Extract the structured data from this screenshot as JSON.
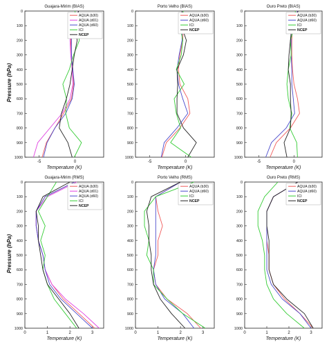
{
  "figure": {
    "ylabel": "Pressure (hPa)",
    "xlabel": "Temperature (K)"
  },
  "colors": {
    "aqua_b30": "#f05a5a",
    "aqua_d01": "#e040e0",
    "aqua_d60": "#4a4acc",
    "ici": "#33cc33",
    "ncep": "#222222"
  },
  "chart_data": [
    {
      "type": "line",
      "title": "Guajara-Mirim (BIAS)",
      "xlabel": "Temperature (K)",
      "ylabel": "Pressure (hPa)",
      "xlim": [
        -7,
        4
      ],
      "ylim": [
        1000,
        0
      ],
      "y_inverted": true,
      "grid": false,
      "xticks": [
        -5,
        0
      ],
      "xtick_labels": [
        "-5",
        "0"
      ],
      "y": [
        0,
        100,
        200,
        300,
        400,
        500,
        600,
        700,
        800,
        900,
        1000
      ],
      "legend_position": "top-right",
      "series": [
        {
          "name": "AQUA (b30)",
          "color": "#f05a5a",
          "x": [
            0.5,
            -0.4,
            -0.6,
            -0.5,
            -0.3,
            -0.2,
            -0.5,
            -1.6,
            -2.8,
            -4.0,
            -4.6
          ]
        },
        {
          "name": "AQUA (d01)",
          "color": "#e040e0",
          "x": [
            0.5,
            -0.5,
            -0.7,
            -0.6,
            -0.4,
            -0.3,
            -0.7,
            -1.8,
            -3.5,
            -5.2,
            -5.8
          ]
        },
        {
          "name": "AQUA (d60)",
          "color": "#4a4acc",
          "x": [
            0.5,
            -0.4,
            -0.5,
            -0.5,
            -0.3,
            -0.1,
            -0.4,
            -1.3,
            -2.8,
            -3.9,
            -4.4
          ]
        },
        {
          "name": "ICI",
          "color": "#33cc33",
          "x": [
            0.0,
            0.2,
            0.6,
            -0.2,
            -0.8,
            -1.7,
            -1.2,
            -1.3,
            -0.8,
            0.9,
            -0.1
          ]
        },
        {
          "name": "NCEP",
          "color": "#222222",
          "x": [
            0.5,
            -0.1,
            0.3,
            -0.1,
            -0.4,
            -0.7,
            -1.2,
            -1.9,
            -2.2,
            -1.0,
            -0.4
          ]
        }
      ]
    },
    {
      "type": "line",
      "title": "Porto Velho (BIAS)",
      "xlabel": "Temperature (K)",
      "ylabel": "",
      "xlim": [
        -7,
        4
      ],
      "ylim": [
        1000,
        0
      ],
      "y_inverted": true,
      "grid": false,
      "xticks": [
        -5,
        0
      ],
      "xtick_labels": [
        "-5",
        "0"
      ],
      "y": [
        0,
        100,
        200,
        300,
        400,
        500,
        600,
        700,
        800,
        900,
        1000
      ],
      "legend_position": "top-right",
      "series": [
        {
          "name": "AQUA (b30)",
          "color": "#f05a5a",
          "x": [
            -0.5,
            -0.3,
            -0.4,
            -0.8,
            -1.0,
            -0.8,
            0.3,
            0.6,
            -0.8,
            -2.7,
            -3.3
          ]
        },
        {
          "name": "AQUA (d60)",
          "color": "#4a4acc",
          "x": [
            -0.5,
            -0.5,
            -0.5,
            -0.9,
            -1.2,
            -1.0,
            -0.4,
            0.3,
            -1.2,
            -3.0,
            -3.4
          ]
        },
        {
          "name": "ICI",
          "color": "#33cc33",
          "x": [
            -0.3,
            -0.8,
            -0.4,
            -0.6,
            -1.3,
            -0.2,
            -1.6,
            -1.3,
            -0.7,
            -2.1,
            0.8
          ]
        },
        {
          "name": "NCEP",
          "color": "#222222",
          "x": [
            -0.5,
            -0.6,
            0.1,
            -0.3,
            -1.2,
            -1.1,
            -1.2,
            -1.2,
            -0.3,
            1.5,
            0.3
          ]
        }
      ]
    },
    {
      "type": "line",
      "title": "Ouro Preto (BIAS)",
      "xlabel": "Temperature (K)",
      "ylabel": "",
      "xlim": [
        -7,
        4
      ],
      "ylim": [
        1000,
        0
      ],
      "y_inverted": true,
      "grid": false,
      "xticks": [
        -5,
        0
      ],
      "xtick_labels": [
        "-5",
        "0"
      ],
      "y": [
        0,
        100,
        200,
        300,
        400,
        500,
        600,
        700,
        800,
        900,
        1000
      ],
      "legend_position": "top-right",
      "series": [
        {
          "name": "AQUA (b30)",
          "color": "#f05a5a",
          "x": [
            0.5,
            -0.2,
            -0.3,
            -0.3,
            -0.2,
            0.0,
            0.5,
            0.8,
            -0.5,
            -2.5,
            -3.4
          ]
        },
        {
          "name": "AQUA (d60)",
          "color": "#4a4acc",
          "x": [
            0.5,
            -0.4,
            -0.4,
            -0.4,
            -0.3,
            -0.3,
            -0.1,
            0.1,
            -1.1,
            -3.2,
            -4.0
          ]
        },
        {
          "name": "ICI",
          "color": "#33cc33",
          "x": [
            0.2,
            0.1,
            -0.5,
            -0.4,
            -0.8,
            -1.0,
            -0.8,
            -0.3,
            -0.6,
            0.4,
            0.5
          ]
        },
        {
          "name": "NCEP",
          "color": "#222222",
          "x": [
            0.6,
            -0.3,
            -0.5,
            -0.7,
            -0.8,
            -0.5,
            -0.5,
            -0.4,
            -0.5,
            -1.4,
            -1.0
          ]
        }
      ]
    },
    {
      "type": "line",
      "title": "Guajara-Mirim (RMS)",
      "xlabel": "Temperature (K)",
      "ylabel": "Pressure (hPa)",
      "xlim": [
        0,
        3.5
      ],
      "ylim": [
        1000,
        0
      ],
      "y_inverted": true,
      "grid": false,
      "xticks": [
        0,
        1,
        2,
        3
      ],
      "xtick_labels": [
        "0",
        "1",
        "2",
        "3"
      ],
      "y": [
        0,
        100,
        200,
        300,
        400,
        500,
        600,
        700,
        800,
        900,
        1000
      ],
      "legend_position": "top-right",
      "series": [
        {
          "name": "AQUA (b30)",
          "color": "#f05a5a",
          "x": [
            2.2,
            0.9,
            0.5,
            0.5,
            0.6,
            0.8,
            0.9,
            1.2,
            1.7,
            2.4,
            3.1
          ]
        },
        {
          "name": "AQUA (d01)",
          "color": "#e040e0",
          "x": [
            2.3,
            1.0,
            0.5,
            0.5,
            0.6,
            0.8,
            0.9,
            1.2,
            1.8,
            2.6,
            3.3
          ]
        },
        {
          "name": "AQUA (d60)",
          "color": "#4a4acc",
          "x": [
            2.2,
            0.9,
            0.5,
            0.5,
            0.6,
            0.8,
            0.9,
            1.1,
            1.6,
            2.3,
            3.0
          ]
        },
        {
          "name": "ICI",
          "color": "#33cc33",
          "x": [
            1.4,
            1.0,
            0.6,
            0.9,
            0.7,
            0.9,
            0.8,
            1.0,
            1.3,
            1.8,
            2.3
          ]
        },
        {
          "name": "NCEP",
          "color": "#222222",
          "x": [
            2.0,
            0.8,
            0.5,
            0.6,
            0.6,
            0.7,
            0.8,
            1.0,
            1.5,
            2.0,
            2.4
          ]
        }
      ]
    },
    {
      "type": "line",
      "title": "Porto Velho (RMS)",
      "xlabel": "Temperature (K)",
      "ylabel": "",
      "xlim": [
        0,
        3.5
      ],
      "ylim": [
        1000,
        0
      ],
      "y_inverted": true,
      "grid": false,
      "xticks": [
        0,
        1,
        2,
        3
      ],
      "xtick_labels": [
        "0",
        "1",
        "2",
        "3"
      ],
      "y": [
        0,
        100,
        200,
        300,
        400,
        500,
        600,
        700,
        800,
        900,
        1000
      ],
      "legend_position": "top-right",
      "series": [
        {
          "name": "AQUA (b30)",
          "color": "#f05a5a",
          "x": [
            2.0,
            0.9,
            1.0,
            1.2,
            1.0,
            1.0,
            0.8,
            0.9,
            1.4,
            2.3,
            2.9
          ]
        },
        {
          "name": "AQUA (d60)",
          "color": "#4a4acc",
          "x": [
            2.0,
            0.9,
            0.9,
            0.9,
            0.9,
            0.9,
            0.8,
            0.9,
            1.3,
            2.1,
            2.6
          ]
        },
        {
          "name": "ICI",
          "color": "#33cc33",
          "x": [
            2.6,
            0.9,
            0.4,
            0.4,
            0.6,
            0.5,
            0.8,
            0.8,
            1.4,
            2.1,
            3.1
          ]
        },
        {
          "name": "NCEP",
          "color": "#222222",
          "x": [
            2.0,
            0.7,
            0.5,
            0.6,
            0.6,
            0.7,
            0.7,
            0.8,
            1.1,
            1.6,
            2.2
          ]
        }
      ]
    },
    {
      "type": "line",
      "title": "Ouro Preto (RMS)",
      "xlabel": "Temperature (K)",
      "ylabel": "",
      "xlim": [
        0,
        3.5
      ],
      "ylim": [
        1000,
        0
      ],
      "y_inverted": true,
      "grid": false,
      "xticks": [
        0,
        1,
        2,
        3
      ],
      "xtick_labels": [
        "0",
        "1",
        "2",
        "3"
      ],
      "y": [
        0,
        100,
        200,
        300,
        400,
        500,
        600,
        700,
        800,
        900,
        1000
      ],
      "legend_position": "top-right",
      "series": [
        {
          "name": "AQUA (b30)",
          "color": "#f05a5a",
          "x": [
            2.4,
            1.3,
            1.0,
            1.0,
            1.0,
            1.1,
            1.1,
            1.3,
            1.8,
            2.5,
            3.1
          ]
        },
        {
          "name": "AQUA (d60)",
          "color": "#4a4acc",
          "x": [
            2.4,
            1.3,
            1.0,
            1.0,
            1.0,
            1.0,
            1.0,
            1.2,
            1.7,
            2.5,
            3.0
          ]
        },
        {
          "name": "ICI",
          "color": "#33cc33",
          "x": [
            1.5,
            0.9,
            0.6,
            0.6,
            0.8,
            0.9,
            0.9,
            1.0,
            1.3,
            1.9,
            2.7
          ]
        },
        {
          "name": "NCEP",
          "color": "#222222",
          "x": [
            2.4,
            1.3,
            1.0,
            1.0,
            1.1,
            1.1,
            1.1,
            1.3,
            1.9,
            2.7,
            3.1
          ]
        }
      ]
    }
  ]
}
